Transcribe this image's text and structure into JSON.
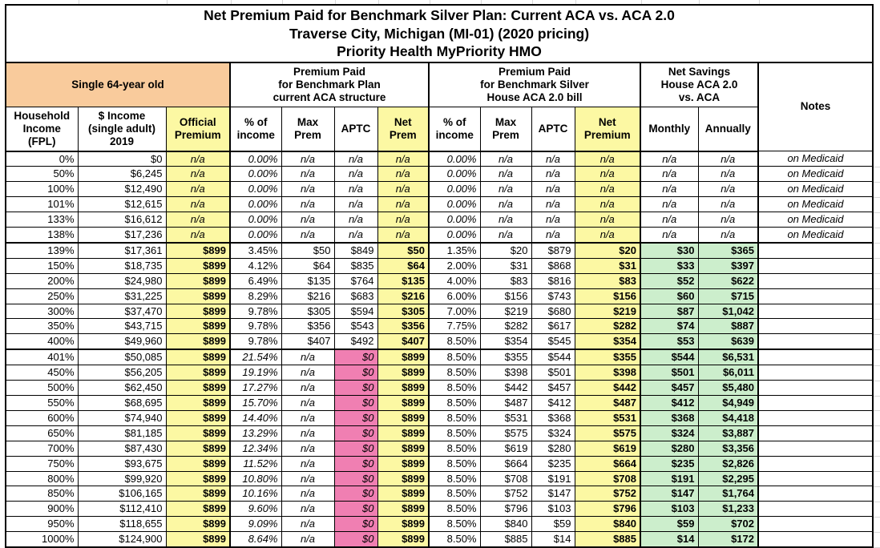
{
  "sheet": {
    "titles": [
      "Net Premium Paid for Benchmark Silver Plan: Current ACA vs. ACA 2.0",
      "Traverse City, Michigan (MI-01) (2020 pricing)",
      "Priority Health MyPriority HMO"
    ],
    "groups": {
      "profile": "Single 64-year old",
      "aca": "Premium Paid\nfor Benchmark Plan\ncurrent ACA structure",
      "aca2": "Premium Paid\nfor Benchmark Silver\nHouse ACA 2.0 bill",
      "savings": "Net Savings\nHouse ACA 2.0\nvs. ACA",
      "notes_label": "Notes"
    },
    "columns": [
      "Household\nIncome\n(FPL)",
      "$ Income\n(single adult)\n2019",
      "Official\nPremium",
      "% of\nincome",
      "Max\nPrem",
      "APTC",
      "Net\nPrem",
      "% of\nincome",
      "Max\nPrem",
      "APTC",
      "Net\nPremium",
      "Monthly",
      "Annually"
    ],
    "colors": {
      "orange_header": "#F9CB9C",
      "yellow_highlight": "#FCF8A3",
      "pink_zero_aptc": "#F07FB2",
      "green_savings": "#CCEECC"
    },
    "rows": [
      {
        "type": "medicaid",
        "fpl": "0%",
        "income": "$0",
        "official": "n/a",
        "a_pct": "0.00%",
        "a_max": "n/a",
        "a_aptc": "n/a",
        "a_net": "n/a",
        "h_pct": "0.00%",
        "h_max": "n/a",
        "h_aptc": "n/a",
        "h_net": "n/a",
        "monthly": "n/a",
        "annually": "n/a",
        "notes": "on Medicaid"
      },
      {
        "type": "medicaid",
        "fpl": "50%",
        "income": "$6,245",
        "official": "n/a",
        "a_pct": "0.00%",
        "a_max": "n/a",
        "a_aptc": "n/a",
        "a_net": "n/a",
        "h_pct": "0.00%",
        "h_max": "n/a",
        "h_aptc": "n/a",
        "h_net": "n/a",
        "monthly": "n/a",
        "annually": "n/a",
        "notes": "on Medicaid"
      },
      {
        "type": "medicaid",
        "fpl": "100%",
        "income": "$12,490",
        "official": "n/a",
        "a_pct": "0.00%",
        "a_max": "n/a",
        "a_aptc": "n/a",
        "a_net": "n/a",
        "h_pct": "0.00%",
        "h_max": "n/a",
        "h_aptc": "n/a",
        "h_net": "n/a",
        "monthly": "n/a",
        "annually": "n/a",
        "notes": "on Medicaid"
      },
      {
        "type": "medicaid",
        "fpl": "101%",
        "income": "$12,615",
        "official": "n/a",
        "a_pct": "0.00%",
        "a_max": "n/a",
        "a_aptc": "n/a",
        "a_net": "n/a",
        "h_pct": "0.00%",
        "h_max": "n/a",
        "h_aptc": "n/a",
        "h_net": "n/a",
        "monthly": "n/a",
        "annually": "n/a",
        "notes": "on Medicaid"
      },
      {
        "type": "medicaid",
        "fpl": "133%",
        "income": "$16,612",
        "official": "n/a",
        "a_pct": "0.00%",
        "a_max": "n/a",
        "a_aptc": "n/a",
        "a_net": "n/a",
        "h_pct": "0.00%",
        "h_max": "n/a",
        "h_aptc": "n/a",
        "h_net": "n/a",
        "monthly": "n/a",
        "annually": "n/a",
        "notes": "on Medicaid"
      },
      {
        "type": "medicaid",
        "fpl": "138%",
        "income": "$17,236",
        "official": "n/a",
        "a_pct": "0.00%",
        "a_max": "n/a",
        "a_aptc": "n/a",
        "a_net": "n/a",
        "h_pct": "0.00%",
        "h_max": "n/a",
        "h_aptc": "n/a",
        "h_net": "n/a",
        "monthly": "n/a",
        "annually": "n/a",
        "notes": "on Medicaid"
      },
      {
        "type": "subsidy",
        "fpl": "139%",
        "income": "$17,361",
        "official": "$899",
        "a_pct": "3.45%",
        "a_max": "$50",
        "a_aptc": "$849",
        "a_net": "$50",
        "h_pct": "1.35%",
        "h_max": "$20",
        "h_aptc": "$879",
        "h_net": "$20",
        "monthly": "$30",
        "annually": "$365",
        "notes": ""
      },
      {
        "type": "subsidy",
        "fpl": "150%",
        "income": "$18,735",
        "official": "$899",
        "a_pct": "4.12%",
        "a_max": "$64",
        "a_aptc": "$835",
        "a_net": "$64",
        "h_pct": "2.00%",
        "h_max": "$31",
        "h_aptc": "$868",
        "h_net": "$31",
        "monthly": "$33",
        "annually": "$397",
        "notes": ""
      },
      {
        "type": "subsidy",
        "fpl": "200%",
        "income": "$24,980",
        "official": "$899",
        "a_pct": "6.49%",
        "a_max": "$135",
        "a_aptc": "$764",
        "a_net": "$135",
        "h_pct": "4.00%",
        "h_max": "$83",
        "h_aptc": "$816",
        "h_net": "$83",
        "monthly": "$52",
        "annually": "$622",
        "notes": ""
      },
      {
        "type": "subsidy",
        "fpl": "250%",
        "income": "$31,225",
        "official": "$899",
        "a_pct": "8.29%",
        "a_max": "$216",
        "a_aptc": "$683",
        "a_net": "$216",
        "h_pct": "6.00%",
        "h_max": "$156",
        "h_aptc": "$743",
        "h_net": "$156",
        "monthly": "$60",
        "annually": "$715",
        "notes": ""
      },
      {
        "type": "subsidy",
        "fpl": "300%",
        "income": "$37,470",
        "official": "$899",
        "a_pct": "9.78%",
        "a_max": "$305",
        "a_aptc": "$594",
        "a_net": "$305",
        "h_pct": "7.00%",
        "h_max": "$219",
        "h_aptc": "$680",
        "h_net": "$219",
        "monthly": "$87",
        "annually": "$1,042",
        "notes": ""
      },
      {
        "type": "subsidy",
        "fpl": "350%",
        "income": "$43,715",
        "official": "$899",
        "a_pct": "9.78%",
        "a_max": "$356",
        "a_aptc": "$543",
        "a_net": "$356",
        "h_pct": "7.75%",
        "h_max": "$282",
        "h_aptc": "$617",
        "h_net": "$282",
        "monthly": "$74",
        "annually": "$887",
        "notes": ""
      },
      {
        "type": "subsidy",
        "fpl": "400%",
        "income": "$49,960",
        "official": "$899",
        "a_pct": "9.78%",
        "a_max": "$407",
        "a_aptc": "$492",
        "a_net": "$407",
        "h_pct": "8.50%",
        "h_max": "$354",
        "h_aptc": "$545",
        "h_net": "$354",
        "monthly": "$53",
        "annually": "$639",
        "notes": ""
      },
      {
        "type": "nosub",
        "fpl": "401%",
        "income": "$50,085",
        "official": "$899",
        "a_pct": "21.54%",
        "a_max": "n/a",
        "a_aptc": "$0",
        "a_net": "$899",
        "h_pct": "8.50%",
        "h_max": "$355",
        "h_aptc": "$544",
        "h_net": "$355",
        "monthly": "$544",
        "annually": "$6,531",
        "notes": ""
      },
      {
        "type": "nosub",
        "fpl": "450%",
        "income": "$56,205",
        "official": "$899",
        "a_pct": "19.19%",
        "a_max": "n/a",
        "a_aptc": "$0",
        "a_net": "$899",
        "h_pct": "8.50%",
        "h_max": "$398",
        "h_aptc": "$501",
        "h_net": "$398",
        "monthly": "$501",
        "annually": "$6,011",
        "notes": ""
      },
      {
        "type": "nosub",
        "fpl": "500%",
        "income": "$62,450",
        "official": "$899",
        "a_pct": "17.27%",
        "a_max": "n/a",
        "a_aptc": "$0",
        "a_net": "$899",
        "h_pct": "8.50%",
        "h_max": "$442",
        "h_aptc": "$457",
        "h_net": "$442",
        "monthly": "$457",
        "annually": "$5,480",
        "notes": ""
      },
      {
        "type": "nosub",
        "fpl": "550%",
        "income": "$68,695",
        "official": "$899",
        "a_pct": "15.70%",
        "a_max": "n/a",
        "a_aptc": "$0",
        "a_net": "$899",
        "h_pct": "8.50%",
        "h_max": "$487",
        "h_aptc": "$412",
        "h_net": "$487",
        "monthly": "$412",
        "annually": "$4,949",
        "notes": ""
      },
      {
        "type": "nosub",
        "fpl": "600%",
        "income": "$74,940",
        "official": "$899",
        "a_pct": "14.40%",
        "a_max": "n/a",
        "a_aptc": "$0",
        "a_net": "$899",
        "h_pct": "8.50%",
        "h_max": "$531",
        "h_aptc": "$368",
        "h_net": "$531",
        "monthly": "$368",
        "annually": "$4,418",
        "notes": ""
      },
      {
        "type": "nosub",
        "fpl": "650%",
        "income": "$81,185",
        "official": "$899",
        "a_pct": "13.29%",
        "a_max": "n/a",
        "a_aptc": "$0",
        "a_net": "$899",
        "h_pct": "8.50%",
        "h_max": "$575",
        "h_aptc": "$324",
        "h_net": "$575",
        "monthly": "$324",
        "annually": "$3,887",
        "notes": ""
      },
      {
        "type": "nosub",
        "fpl": "700%",
        "income": "$87,430",
        "official": "$899",
        "a_pct": "12.34%",
        "a_max": "n/a",
        "a_aptc": "$0",
        "a_net": "$899",
        "h_pct": "8.50%",
        "h_max": "$619",
        "h_aptc": "$280",
        "h_net": "$619",
        "monthly": "$280",
        "annually": "$3,356",
        "notes": ""
      },
      {
        "type": "nosub",
        "fpl": "750%",
        "income": "$93,675",
        "official": "$899",
        "a_pct": "11.52%",
        "a_max": "n/a",
        "a_aptc": "$0",
        "a_net": "$899",
        "h_pct": "8.50%",
        "h_max": "$664",
        "h_aptc": "$235",
        "h_net": "$664",
        "monthly": "$235",
        "annually": "$2,826",
        "notes": ""
      },
      {
        "type": "nosub",
        "fpl": "800%",
        "income": "$99,920",
        "official": "$899",
        "a_pct": "10.80%",
        "a_max": "n/a",
        "a_aptc": "$0",
        "a_net": "$899",
        "h_pct": "8.50%",
        "h_max": "$708",
        "h_aptc": "$191",
        "h_net": "$708",
        "monthly": "$191",
        "annually": "$2,295",
        "notes": ""
      },
      {
        "type": "nosub",
        "fpl": "850%",
        "income": "$106,165",
        "official": "$899",
        "a_pct": "10.16%",
        "a_max": "n/a",
        "a_aptc": "$0",
        "a_net": "$899",
        "h_pct": "8.50%",
        "h_max": "$752",
        "h_aptc": "$147",
        "h_net": "$752",
        "monthly": "$147",
        "annually": "$1,764",
        "notes": ""
      },
      {
        "type": "nosub",
        "fpl": "900%",
        "income": "$112,410",
        "official": "$899",
        "a_pct": "9.60%",
        "a_max": "n/a",
        "a_aptc": "$0",
        "a_net": "$899",
        "h_pct": "8.50%",
        "h_max": "$796",
        "h_aptc": "$103",
        "h_net": "$796",
        "monthly": "$103",
        "annually": "$1,233",
        "notes": ""
      },
      {
        "type": "nosub",
        "fpl": "950%",
        "income": "$118,655",
        "official": "$899",
        "a_pct": "9.09%",
        "a_max": "n/a",
        "a_aptc": "$0",
        "a_net": "$899",
        "h_pct": "8.50%",
        "h_max": "$840",
        "h_aptc": "$59",
        "h_net": "$840",
        "monthly": "$59",
        "annually": "$702",
        "notes": ""
      },
      {
        "type": "nosub",
        "fpl": "1000%",
        "income": "$124,900",
        "official": "$899",
        "a_pct": "8.64%",
        "a_max": "n/a",
        "a_aptc": "$0",
        "a_net": "$899",
        "h_pct": "8.50%",
        "h_max": "$885",
        "h_aptc": "$14",
        "h_net": "$885",
        "monthly": "$14",
        "annually": "$172",
        "notes": ""
      }
    ]
  }
}
